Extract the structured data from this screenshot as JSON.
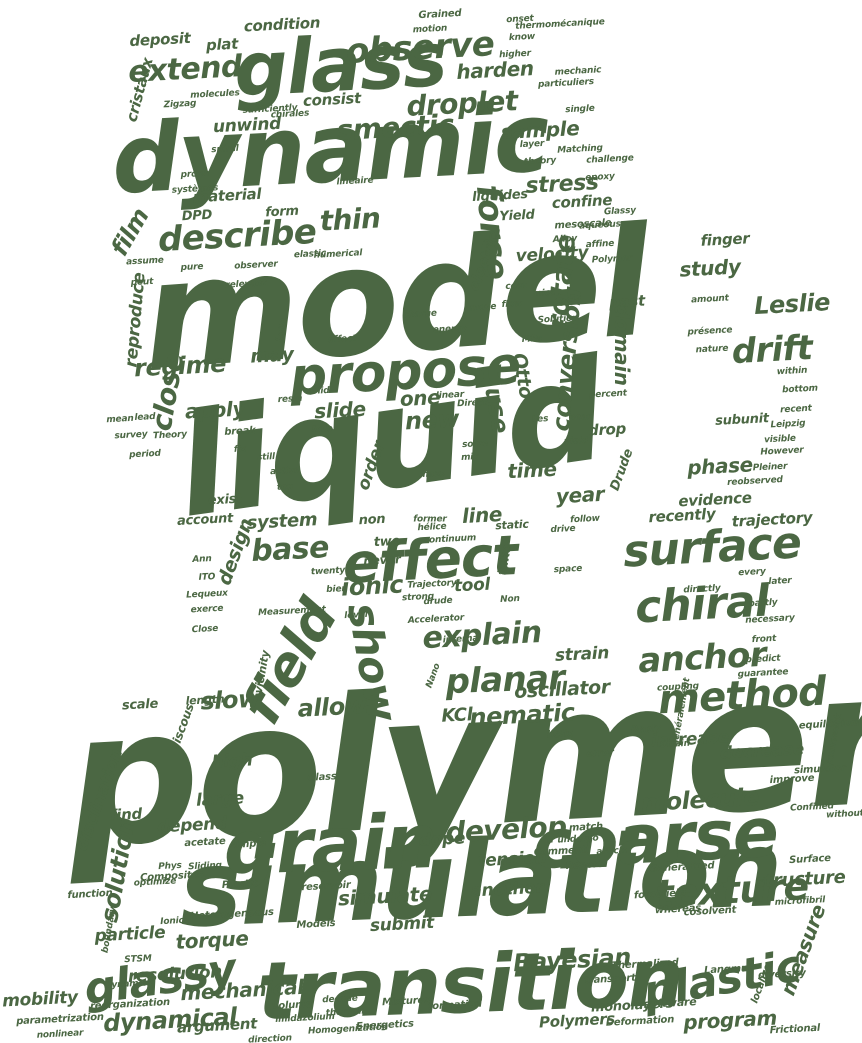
{
  "words": [
    "model",
    "liquid",
    "polymer",
    "simulation",
    "dynamic",
    "glass",
    "transition",
    "grain",
    "coarse",
    "effect",
    "propose",
    "surface",
    "chiral",
    "field",
    "show",
    "glassy",
    "plastic",
    "texture",
    "method",
    "anchor",
    "planar",
    "observe",
    "extend",
    "droplet",
    "smectic",
    "describe",
    "thin",
    "film",
    "force",
    "rotate",
    "drift",
    "Leslie",
    "base",
    "ionic",
    "close",
    "regime",
    "apply",
    "slide",
    "new",
    "one",
    "use",
    "conversion",
    "domain",
    "study",
    "finger",
    "phase",
    "evidence",
    "stress",
    "sample",
    "harden",
    "line",
    "explain",
    "simulate",
    "molecule",
    "develop",
    "solution",
    "slow",
    "allow",
    "nematic",
    "KCl",
    "dynamical",
    "mechanical",
    "Bayesian",
    "program",
    "measure",
    "torque",
    "resolution",
    "particle",
    "mobility",
    "year",
    "time",
    "system",
    "design",
    "trajectory",
    "recently",
    "structure",
    "decrease",
    "increase",
    "oscillator",
    "strain",
    "tool",
    "disclination",
    "large",
    "high",
    "depend",
    "find",
    "dope",
    "tension",
    "another",
    "submit",
    "argument",
    "Polymers",
    "monolayers",
    "velocity",
    "past",
    "electric",
    "material",
    "DPD",
    "form",
    "reproduce",
    "may",
    "order",
    "Otto",
    "drop",
    "Drude",
    "cristaux",
    "deposit",
    "plat",
    "condition",
    "unwind",
    "consist",
    "confine",
    "Yield",
    "liquides",
    "account",
    "exist",
    "non",
    "two",
    "never",
    "take",
    "static",
    "subunit",
    "vicinity",
    "viscous",
    "length",
    "scale",
    "Glass",
    "helix",
    "error",
    "Reply",
    "Comment",
    "match",
    "undergo",
    "article",
    "Report",
    "Generalized",
    "forcefield",
    "cosolvent",
    "Surface",
    "improve",
    "simulator",
    "equilibrium",
    "Composites",
    "Plastic",
    "Models",
    "reservoir",
    "Mixtures",
    "Energetics",
    "transport",
    "Thermalized",
    "Deformation",
    "software",
    "Langmuir",
    "diversity",
    "Frictional",
    "Homogenization",
    "thermal",
    "decade",
    "volume",
    "imidazolium",
    "parametrization",
    "nonlinear",
    "direction",
    "formation",
    "reorganization",
    "Dynamics",
    "STSM",
    "boundary",
    "function",
    "optimize",
    "simple",
    "acetate",
    "Phys",
    "Sliding",
    "Heterogeneous",
    "Ionic",
    "localize",
    "microfibril",
    "whereas",
    "directly",
    "every",
    "later",
    "partly",
    "necessary",
    "front",
    "predict",
    "guarantee",
    "coupling",
    "généralement",
    "Strain",
    "Confined",
    "framework",
    "without",
    "Accelerator",
    "internal",
    "Nano",
    "drude",
    "strong",
    "Trajectory",
    "Non",
    "space",
    "drive",
    "follow",
    "level",
    "Measurement",
    "bien",
    "twenty",
    "ITO",
    "Lequeux",
    "exerce",
    "Close",
    "Ann",
    "hélice",
    "continuum",
    "mass",
    "active",
    "ten",
    "still",
    "fix",
    "break",
    "Theory",
    "lead",
    "mean",
    "survey",
    "period",
    "resin",
    "solid",
    "Role",
    "mix",
    "linear",
    "Direct",
    "solve",
    "Les",
    "near",
    "yield",
    "percent",
    "MPa",
    "effect",
    "Long",
    "Solution",
    "gold",
    "mica",
    "coat",
    "flow",
    "move",
    "charge",
    "energy",
    "peut",
    "assume",
    "pure",
    "relevant",
    "observer",
    "elastic",
    "numerical",
    "linéaire",
    "Polymer",
    "Glassy",
    "affine",
    "theory",
    "layer",
    "mesoscale",
    "aqueous",
    "challenge",
    "epoxy",
    "Matching",
    "single",
    "particuliers",
    "mechanic",
    "know",
    "higher",
    "onset",
    "thermomécanique",
    "Grained",
    "motion",
    "molecules",
    "Zigzag",
    "sufficiently",
    "chirales",
    "spiral",
    "systèmes",
    "prone",
    "nature",
    "présence",
    "amount",
    "within",
    "bottom",
    "recent",
    "Leipzig",
    "visible",
    "However",
    "Pleiner",
    "reobserved",
    "Alloy",
    "former"
  ]
}
